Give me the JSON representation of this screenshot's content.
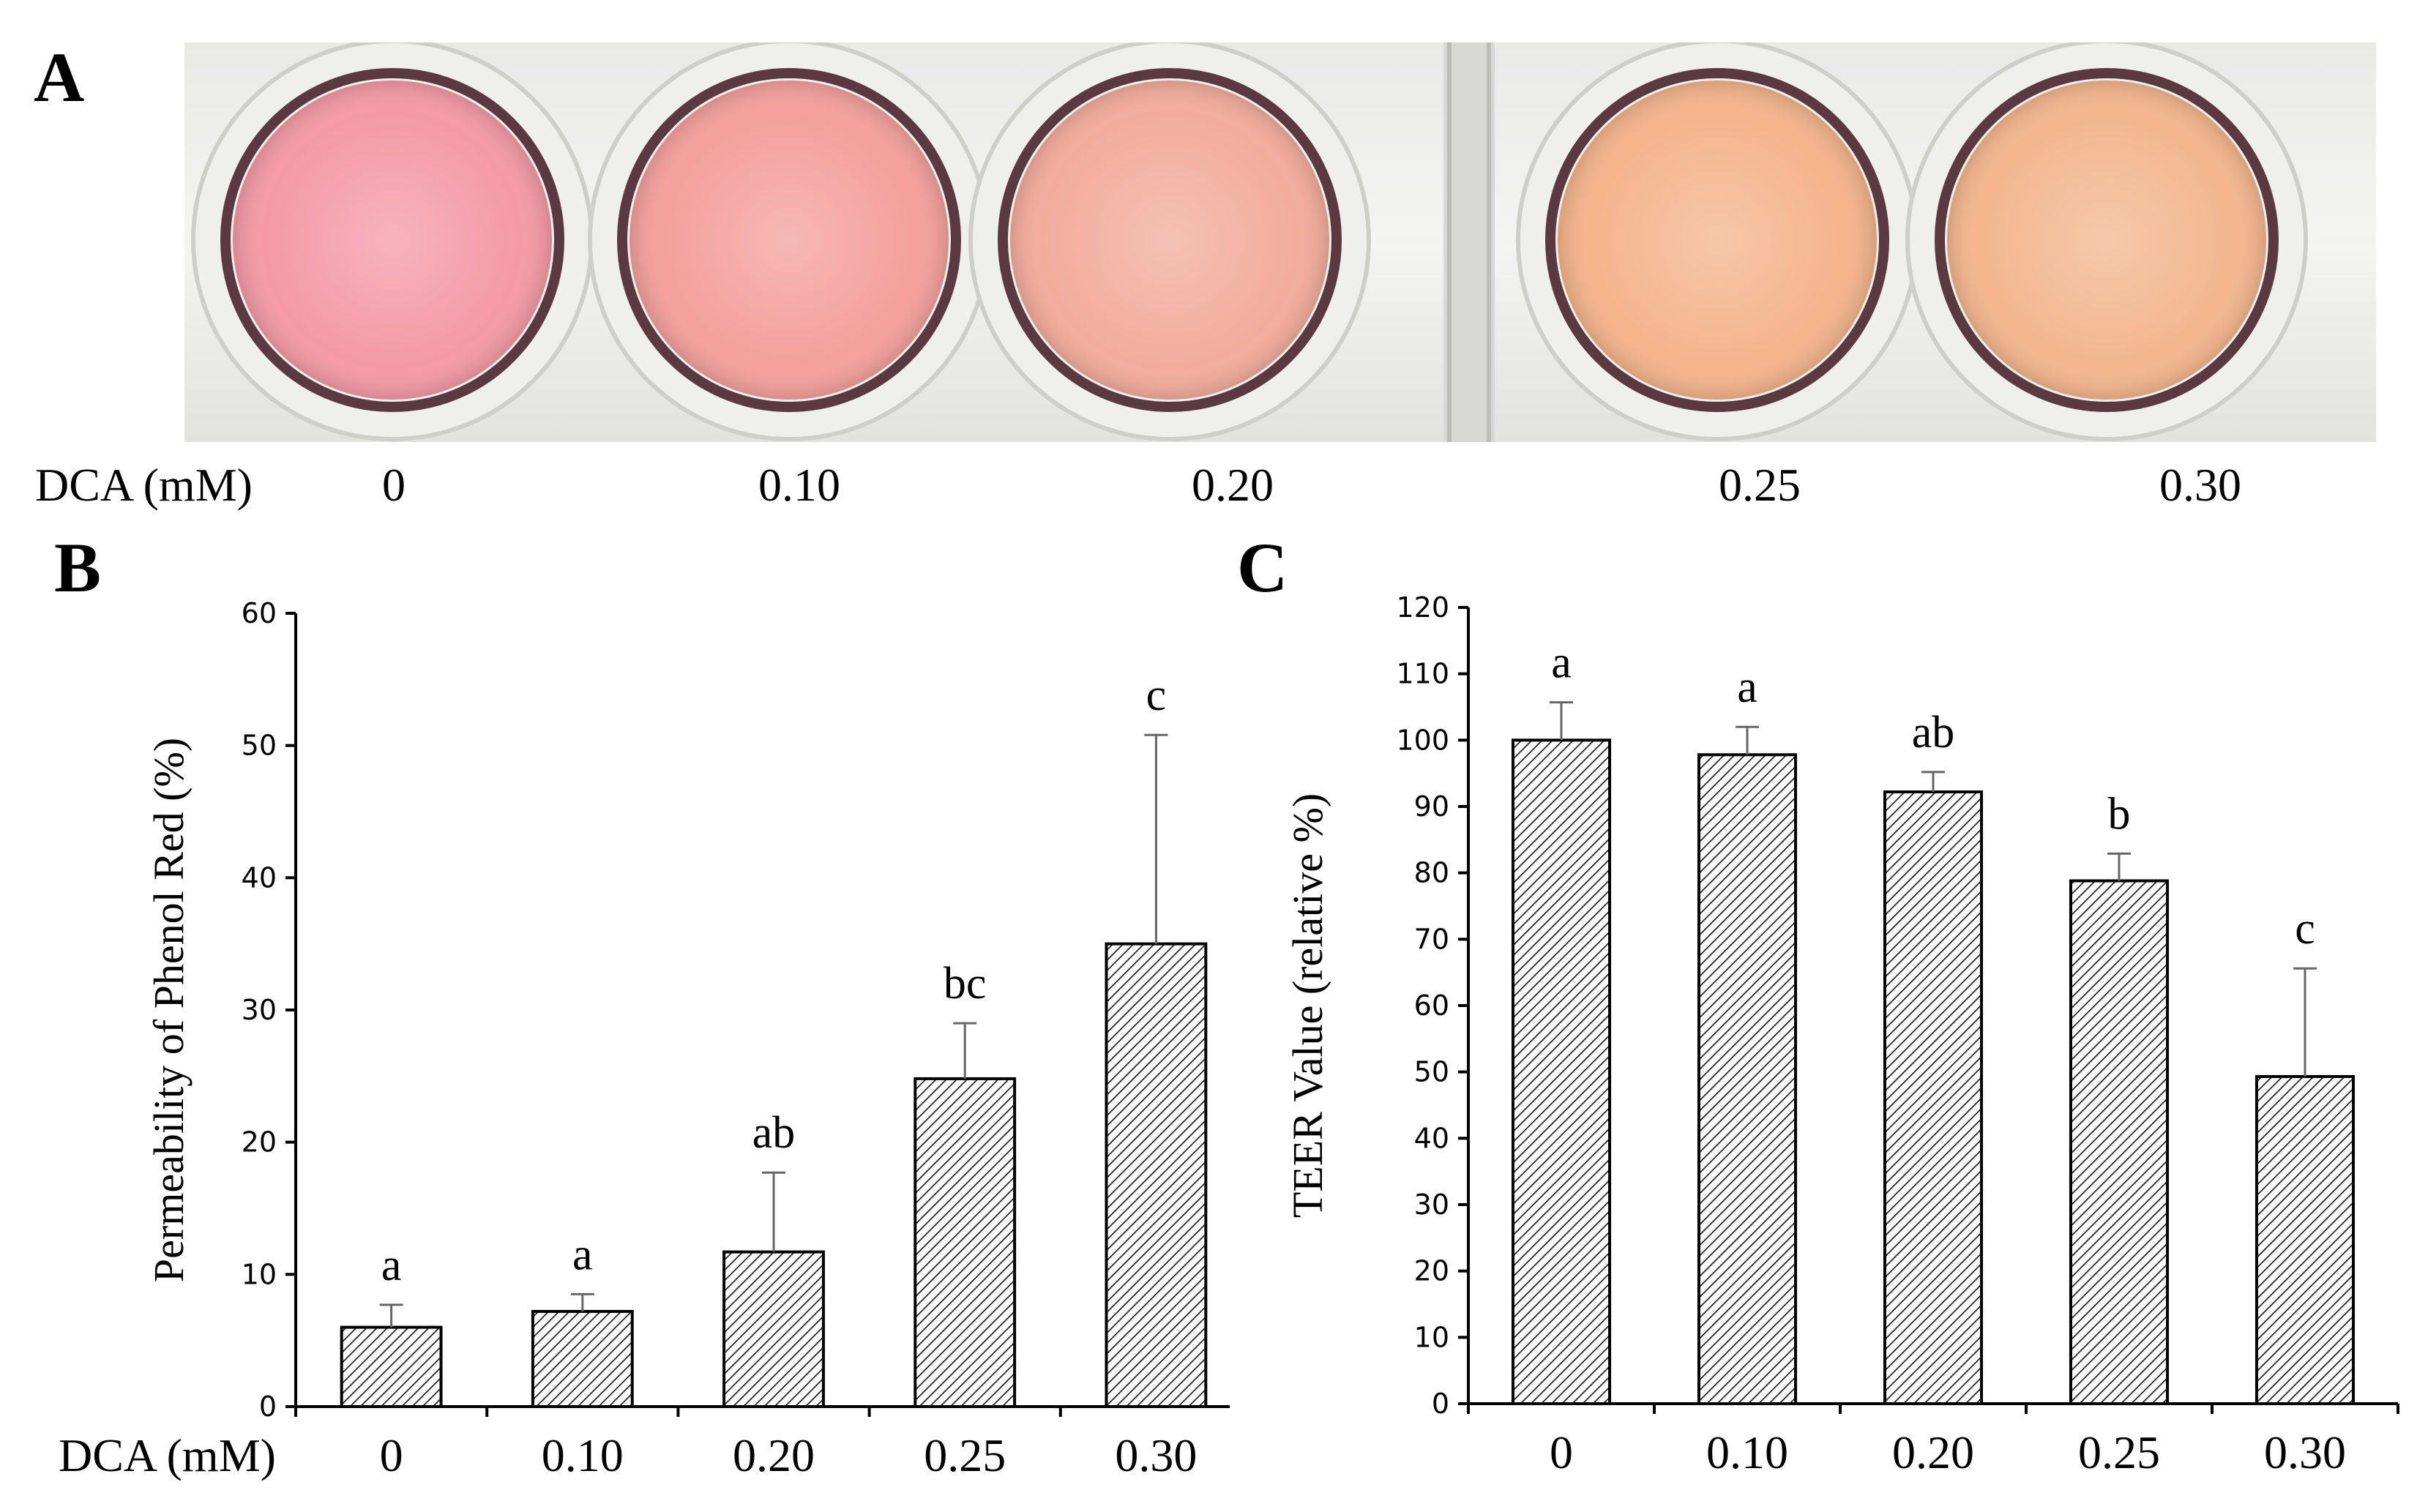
{
  "panels": {
    "a": "A",
    "b": "B",
    "c": "C"
  },
  "photo": {
    "axis_label": "DCA (mM)",
    "wells": [
      {
        "label": "0",
        "color": "#f49aa6"
      },
      {
        "label": "0.10",
        "color": "#f4a09c"
      },
      {
        "label": "0.20",
        "color": "#f2ac9c"
      },
      {
        "label": "0.25",
        "color": "#f4b48c"
      },
      {
        "label": "0.30",
        "color": "#f3b68e"
      }
    ]
  },
  "chart_data": [
    {
      "type": "bar",
      "panel": "B",
      "categories": [
        "0",
        "0.10",
        "0.20",
        "0.25",
        "0.30"
      ],
      "values": [
        6,
        7.2,
        11.7,
        24.8,
        35
      ],
      "errors": [
        1.7,
        1.3,
        6,
        4.2,
        15.8
      ],
      "annotations": [
        "a",
        "a",
        "ab",
        "bc",
        "c"
      ],
      "xlabel": "DCA (mM)",
      "ylabel": "Permeability of Phenol Red (%)",
      "ylim": [
        0,
        60
      ],
      "yticks": [
        0,
        10,
        20,
        30,
        40,
        50,
        60
      ],
      "grid": false,
      "bar_fill": "hatched"
    },
    {
      "type": "bar",
      "panel": "C",
      "categories": [
        "0",
        "0.10",
        "0.20",
        "0.25",
        "0.30"
      ],
      "values": [
        100,
        97.8,
        92.2,
        78.8,
        49.3
      ],
      "errors": [
        5.7,
        4.2,
        3,
        4.1,
        16.3
      ],
      "annotations": [
        "a",
        "a",
        "ab",
        "b",
        "c"
      ],
      "xlabel": "",
      "ylabel": "TEER Value (relative %)",
      "ylim": [
        0,
        120
      ],
      "yticks": [
        0,
        10,
        20,
        30,
        40,
        50,
        60,
        70,
        80,
        90,
        100,
        110,
        120
      ],
      "grid": false,
      "bar_fill": "hatched"
    }
  ]
}
